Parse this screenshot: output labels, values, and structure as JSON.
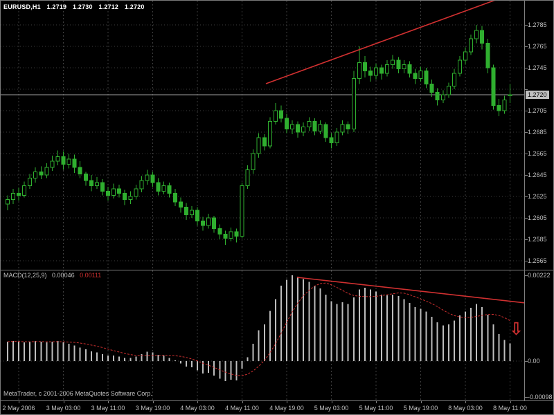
{
  "header": {
    "symbol": "EURUSD,H1",
    "open": "1.2719",
    "high": "1.2730",
    "low": "1.2712",
    "close": "1.2720"
  },
  "indicator_label": {
    "name": "MACD(12,25,9)",
    "main_value": "0.00046",
    "signal_value": "0.00111"
  },
  "footer": {
    "copyright": "MetaTrader, c 2001-2006 MetaQuotes Software Corp."
  },
  "price_axis": {
    "labels": [
      "1.2785",
      "1.2765",
      "1.2745",
      null,
      "1.2705",
      "1.2685",
      "1.2665",
      "1.2645",
      "1.2625",
      "1.2605",
      "1.2585",
      "1.2565"
    ],
    "current_price_label": "1.2720"
  },
  "macd_axis": {
    "labels": [
      "0.00222",
      "0.00",
      "-0.00098"
    ]
  },
  "time_axis": {
    "labels": [
      "2 May 2006",
      "3 May 03:00",
      "3 May 11:00",
      "3 May 19:00",
      "4 May 03:00",
      "4 May 11:00",
      "4 May 19:00",
      "5 May 03:00",
      "5 May 11:00",
      "5 May 19:00",
      "8 May 03:00",
      "8 May 11:00"
    ]
  },
  "icons": {
    "down_arrow": "⇩"
  },
  "colors": {
    "background": "#000000",
    "grid": "#3e3e3e",
    "candle_green": "#2faf2f",
    "bull_fill": "#000000",
    "histogram": "#bdbdbd",
    "red": "#d03030",
    "axis_text": "#c0c0c0",
    "header_text": "#ffffff",
    "bid_line": "#a0a0a0",
    "separator": "#808080",
    "bid_label_bg": "#c0c0c0",
    "bid_label_text": "#000000"
  },
  "chart_data": [
    {
      "type": "candlestick",
      "title": "EURUSD H1",
      "ylim": [
        1.2557,
        1.2788
      ],
      "y_tick_step": 0.002,
      "current_price": 1.272,
      "grid": true,
      "x_tick_labels": [
        "2 May 2006",
        "3 May 03:00",
        "3 May 11:00",
        "3 May 19:00",
        "4 May 03:00",
        "4 May 11:00",
        "4 May 19:00",
        "5 May 03:00",
        "5 May 11:00",
        "5 May 19:00",
        "8 May 03:00",
        "8 May 11:00"
      ],
      "annotations": [
        {
          "type": "trendline",
          "direction": "ascending",
          "color": "#d03030"
        }
      ],
      "ohlc": [
        [
          1.2618,
          1.2626,
          1.2612,
          1.2622
        ],
        [
          1.2622,
          1.2632,
          1.2618,
          1.2628
        ],
        [
          1.2628,
          1.2633,
          1.2621,
          1.2626
        ],
        [
          1.2626,
          1.2639,
          1.2624,
          1.2635
        ],
        [
          1.2635,
          1.2646,
          1.2632,
          1.2642
        ],
        [
          1.2642,
          1.2652,
          1.2638,
          1.2648
        ],
        [
          1.2648,
          1.2653,
          1.2641,
          1.2645
        ],
        [
          1.2645,
          1.2656,
          1.2642,
          1.2652
        ],
        [
          1.2652,
          1.2663,
          1.2649,
          1.2658
        ],
        [
          1.2658,
          1.2668,
          1.2654,
          1.2662
        ],
        [
          1.2662,
          1.2667,
          1.265,
          1.2655
        ],
        [
          1.2655,
          1.2665,
          1.2651,
          1.266
        ],
        [
          1.266,
          1.2664,
          1.2647,
          1.2652
        ],
        [
          1.2652,
          1.2658,
          1.2642,
          1.2646
        ],
        [
          1.2646,
          1.2648,
          1.2635,
          1.264
        ],
        [
          1.264,
          1.2645,
          1.263,
          1.2635
        ],
        [
          1.2635,
          1.2643,
          1.2632,
          1.2638
        ],
        [
          1.2638,
          1.2641,
          1.2626,
          1.263
        ],
        [
          1.263,
          1.2634,
          1.2621,
          1.2626
        ],
        [
          1.2626,
          1.2637,
          1.2623,
          1.2632
        ],
        [
          1.2632,
          1.2636,
          1.2624,
          1.2628
        ],
        [
          1.2628,
          1.2631,
          1.2617,
          1.2622
        ],
        [
          1.2622,
          1.263,
          1.2618,
          1.2625
        ],
        [
          1.2625,
          1.2636,
          1.2622,
          1.2632
        ],
        [
          1.2632,
          1.2644,
          1.2629,
          1.264
        ],
        [
          1.264,
          1.265,
          1.2636,
          1.2645
        ],
        [
          1.2645,
          1.2648,
          1.2634,
          1.2638
        ],
        [
          1.2638,
          1.2642,
          1.2626,
          1.263
        ],
        [
          1.263,
          1.2639,
          1.2627,
          1.2635
        ],
        [
          1.2635,
          1.2638,
          1.2624,
          1.2628
        ],
        [
          1.2628,
          1.2632,
          1.2616,
          1.262
        ],
        [
          1.262,
          1.2624,
          1.261,
          1.2615
        ],
        [
          1.2615,
          1.2619,
          1.2603,
          1.2608
        ],
        [
          1.2608,
          1.2616,
          1.2605,
          1.2612
        ],
        [
          1.2612,
          1.2615,
          1.2598,
          1.2602
        ],
        [
          1.2602,
          1.2606,
          1.2593,
          1.2598
        ],
        [
          1.2598,
          1.2609,
          1.2595,
          1.2605
        ],
        [
          1.2605,
          1.2607,
          1.2591,
          1.2595
        ],
        [
          1.2595,
          1.2599,
          1.2585,
          1.259
        ],
        [
          1.259,
          1.2593,
          1.258,
          1.2586
        ],
        [
          1.2586,
          1.2596,
          1.2583,
          1.2592
        ],
        [
          1.2592,
          1.2595,
          1.2582,
          1.2588
        ],
        [
          1.2588,
          1.2638,
          1.2586,
          1.2635
        ],
        [
          1.2635,
          1.2654,
          1.2632,
          1.265
        ],
        [
          1.265,
          1.2669,
          1.2646,
          1.2665
        ],
        [
          1.2665,
          1.2684,
          1.2661,
          1.268
        ],
        [
          1.268,
          1.2683,
          1.2668,
          1.2672
        ],
        [
          1.2672,
          1.2699,
          1.267,
          1.2695
        ],
        [
          1.2695,
          1.2712,
          1.2692,
          1.2705
        ],
        [
          1.2705,
          1.271,
          1.2694,
          1.2698
        ],
        [
          1.2698,
          1.2702,
          1.2684,
          1.2688
        ],
        [
          1.2688,
          1.2696,
          1.2683,
          1.2692
        ],
        [
          1.2692,
          1.2695,
          1.268,
          1.2685
        ],
        [
          1.2685,
          1.2694,
          1.2681,
          1.269
        ],
        [
          1.269,
          1.2699,
          1.2686,
          1.2695
        ],
        [
          1.2695,
          1.2698,
          1.2682,
          1.2686
        ],
        [
          1.2686,
          1.2696,
          1.2683,
          1.2692
        ],
        [
          1.2692,
          1.2694,
          1.2676,
          1.268
        ],
        [
          1.268,
          1.2684,
          1.267,
          1.2675
        ],
        [
          1.2675,
          1.2689,
          1.2672,
          1.2685
        ],
        [
          1.2685,
          1.2696,
          1.2682,
          1.2692
        ],
        [
          1.2692,
          1.2695,
          1.2683,
          1.2688
        ],
        [
          1.2688,
          1.2742,
          1.2685,
          1.2735
        ],
        [
          1.2735,
          1.2765,
          1.273,
          1.275
        ],
        [
          1.275,
          1.2756,
          1.2736,
          1.2742
        ],
        [
          1.2742,
          1.2746,
          1.2732,
          1.2738
        ],
        [
          1.2738,
          1.2749,
          1.2734,
          1.2745
        ],
        [
          1.2745,
          1.2748,
          1.2734,
          1.274
        ],
        [
          1.274,
          1.2752,
          1.2737,
          1.2748
        ],
        [
          1.2748,
          1.2757,
          1.2744,
          1.2752
        ],
        [
          1.2752,
          1.2755,
          1.274,
          1.2744
        ],
        [
          1.2744,
          1.2752,
          1.274,
          1.2748
        ],
        [
          1.2748,
          1.2751,
          1.2736,
          1.274
        ],
        [
          1.274,
          1.2744,
          1.273,
          1.2735
        ],
        [
          1.2735,
          1.2746,
          1.2732,
          1.2742
        ],
        [
          1.2742,
          1.2745,
          1.2726,
          1.273
        ],
        [
          1.273,
          1.2734,
          1.2718,
          1.2722
        ],
        [
          1.2722,
          1.2726,
          1.271,
          1.2715
        ],
        [
          1.2715,
          1.2724,
          1.2712,
          1.272
        ],
        [
          1.272,
          1.2731,
          1.2717,
          1.2728
        ],
        [
          1.2728,
          1.2744,
          1.2725,
          1.274
        ],
        [
          1.274,
          1.2756,
          1.2737,
          1.2752
        ],
        [
          1.2752,
          1.2764,
          1.2748,
          1.276
        ],
        [
          1.276,
          1.2776,
          1.2757,
          1.2772
        ],
        [
          1.2772,
          1.2785,
          1.2768,
          1.278
        ],
        [
          1.278,
          1.2784,
          1.2762,
          1.2768
        ],
        [
          1.2768,
          1.2772,
          1.274,
          1.2745
        ],
        [
          1.2745,
          1.2748,
          1.2706,
          1.271
        ],
        [
          1.271,
          1.2716,
          1.27,
          1.2705
        ],
        [
          1.2705,
          1.2719,
          1.2702,
          1.2715
        ],
        [
          1.2719,
          1.273,
          1.2712,
          1.272
        ]
      ]
    },
    {
      "type": "bar",
      "title": "MACD(12,25,9)",
      "ylim": [
        -0.00098,
        0.00222
      ],
      "y_ticks": [
        0.00222,
        0,
        -0.00098
      ],
      "signal_period": 9,
      "last_main": 0.00046,
      "last_signal": 0.00111,
      "annotations": [
        {
          "type": "trendline",
          "direction": "descending",
          "color": "#d03030"
        },
        {
          "type": "arrow-down",
          "color": "#d03030"
        }
      ],
      "values": [
        0.0005,
        0.00052,
        0.0005,
        0.00048,
        0.0005,
        0.00052,
        0.0005,
        0.00048,
        0.0005,
        0.00052,
        0.00048,
        0.00045,
        0.0004,
        0.00035,
        0.0003,
        0.00025,
        0.00022,
        0.00018,
        0.00014,
        0.00014,
        0.00012,
        8e-05,
        8e-05,
        0.00012,
        0.00018,
        0.00024,
        0.00022,
        0.00016,
        0.00014,
        8e-05,
        2e-05,
        -6e-05,
        -0.00014,
        -0.00016,
        -0.00024,
        -0.00032,
        -0.0003,
        -0.00038,
        -0.00046,
        -0.00052,
        -0.00048,
        -0.0005,
        -0.0002,
        0.0001,
        0.00045,
        0.0008,
        0.00095,
        0.0013,
        0.0016,
        0.00195,
        0.0021,
        0.00222,
        0.00218,
        0.00212,
        0.00205,
        0.00195,
        0.00188,
        0.00172,
        0.00155,
        0.00148,
        0.00152,
        0.00148,
        0.00165,
        0.00185,
        0.0019,
        0.00185,
        0.0018,
        0.00172,
        0.0017,
        0.00172,
        0.00168,
        0.0016,
        0.0015,
        0.0014,
        0.00135,
        0.00128,
        0.00115,
        0.001,
        0.00092,
        0.00095,
        0.00105,
        0.00118,
        0.00128,
        0.00138,
        0.00148,
        0.0014,
        0.0012,
        0.00095,
        0.0007,
        0.00055,
        0.00046
      ]
    }
  ]
}
